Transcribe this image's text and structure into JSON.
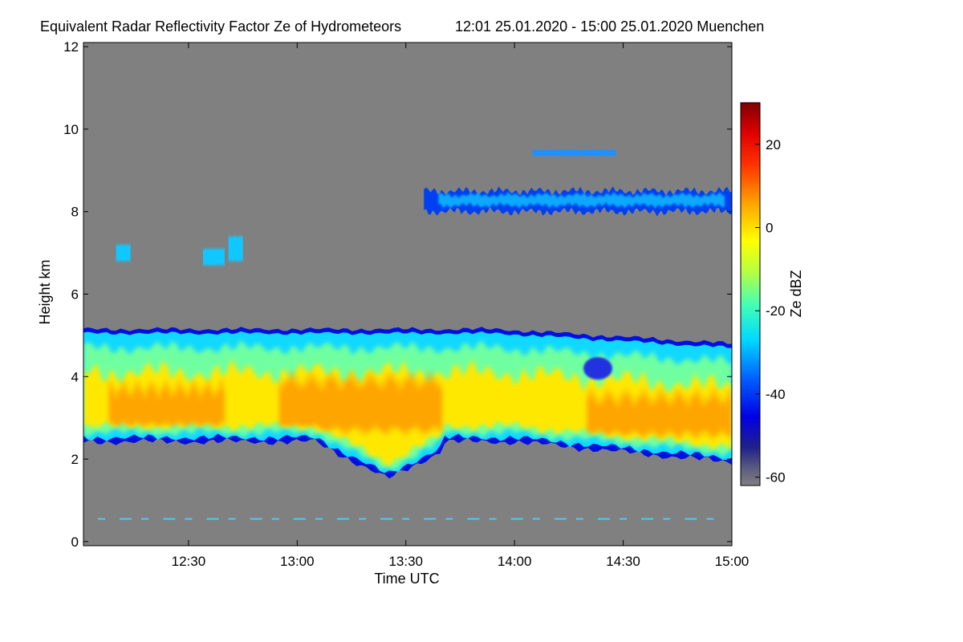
{
  "chart_data": {
    "type": "heatmap",
    "title": "Equivalent Radar Reflectivity Factor Ze of Hydrometeors",
    "subtitle": "12:01 25.01.2020 - 15:00 25.01.2020 Muenchen",
    "xlabel": "Time UTC",
    "ylabel": "Height km",
    "x_ticks": [
      {
        "label": "12:30",
        "minutes": 30
      },
      {
        "label": "13:00",
        "minutes": 60
      },
      {
        "label": "13:30",
        "minutes": 90
      },
      {
        "label": "14:00",
        "minutes": 120
      },
      {
        "label": "14:30",
        "minutes": 150
      },
      {
        "label": "15:00",
        "minutes": 180
      }
    ],
    "x_range_minutes_after_12_00": [
      1,
      180
    ],
    "y_ticks": [
      0,
      2,
      4,
      6,
      8,
      10,
      12
    ],
    "ylim_km": [
      -0.1,
      12.1
    ],
    "colorbar": {
      "label": "Ze dBZ",
      "range": [
        -62,
        30
      ],
      "ticks": [
        20,
        0,
        -20,
        -40,
        -60
      ]
    },
    "no_signal_color": "#808080",
    "features": [
      {
        "name": "main stratiform layer",
        "time_min": [
          1,
          180
        ],
        "base_km": 2.5,
        "top_km": 5.1,
        "typical_dbz": -10,
        "core_dbz": 5
      },
      {
        "name": "fall streaks",
        "time_min": [
          60,
          100
        ],
        "lowest_base_km": 1.6,
        "core_dbz": 8
      },
      {
        "name": "upper ice layer",
        "time_min": [
          95,
          180
        ],
        "base_km": 8.0,
        "top_km": 8.5,
        "typical_dbz": -35
      },
      {
        "name": "isolated echo",
        "time_min": [
          125,
          148
        ],
        "base_km": 9.35,
        "top_km": 9.5,
        "typical_dbz": -32
      },
      {
        "name": "mid-level patches",
        "time_min": [
          10,
          45
        ],
        "base_km": 6.7,
        "top_km": 7.4,
        "typical_dbz": -30
      },
      {
        "name": "near-surface clutter",
        "time_min": [
          5,
          175
        ],
        "height_km": 0.55,
        "typical_dbz": -30
      }
    ]
  }
}
